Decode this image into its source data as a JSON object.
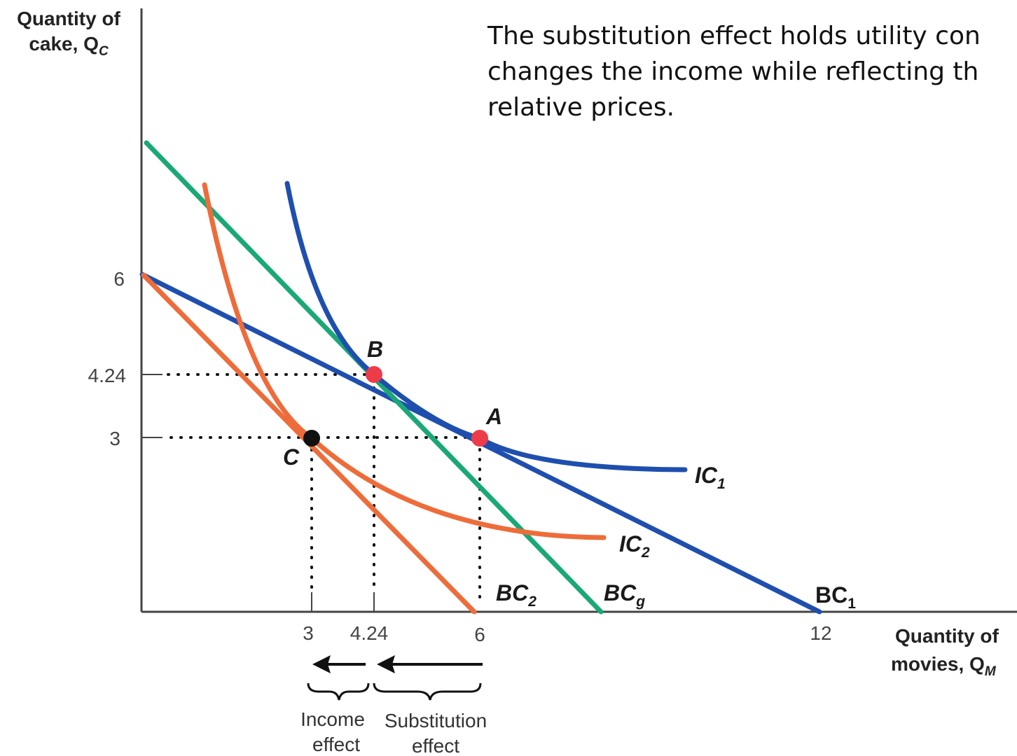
{
  "annotation": {
    "lines": [
      "The substitution effect holds utility con",
      "changes the income while reflecting th",
      "relative prices."
    ]
  },
  "axes": {
    "y_label": [
      "Quantity of",
      "cake, Q",
      "C"
    ],
    "x_label": [
      "Quantity of",
      "movies, Q",
      "M"
    ],
    "y_ticks": [
      "6",
      "4.24",
      "3"
    ],
    "x_ticks": [
      "3",
      "4.24",
      "6",
      "12"
    ]
  },
  "curves": {
    "bc1": {
      "label": "BC",
      "sub": "1",
      "color": "#1f4fae"
    },
    "bc2": {
      "label": "BC",
      "sub": "2",
      "color": "#ee6c3a"
    },
    "bcg": {
      "label": "BC",
      "sub": "g",
      "color": "#1aa877"
    },
    "ic1": {
      "label": "IC",
      "sub": "1",
      "color": "#1f4fae"
    },
    "ic2": {
      "label": "IC",
      "sub": "2",
      "color": "#ee6c3a"
    }
  },
  "points": {
    "a": {
      "label": "A",
      "color": "#ee3b4a"
    },
    "b": {
      "label": "B",
      "color": "#ee3b4a"
    },
    "c": {
      "label": "C",
      "color": "#111111"
    }
  },
  "effects": {
    "income": [
      "Income",
      "effect"
    ],
    "substitution": [
      "Substitution",
      "effect"
    ]
  }
}
